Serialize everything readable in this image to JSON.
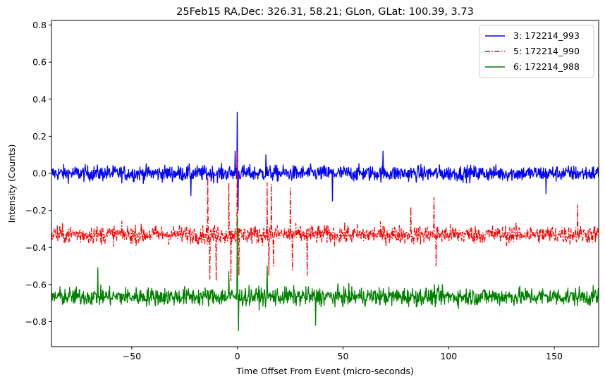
{
  "chart_data": {
    "type": "line",
    "title": "25Feb15 RA,Dec:  326.31,  58.21; GLon, GLat:  100.39,   3.73",
    "xlabel": "Time Offset From Event (micro-seconds)",
    "ylabel": "Intensity (Counts)",
    "xlim": [
      -88,
      171
    ],
    "ylim": [
      -0.935,
      0.825
    ],
    "xticks": [
      -50,
      0,
      50,
      100,
      150
    ],
    "xtick_labels": [
      "−50",
      "0",
      "50",
      "100",
      "150"
    ],
    "yticks": [
      -0.8,
      -0.6,
      -0.4,
      -0.2,
      0.0,
      0.2,
      0.4,
      0.6,
      0.8
    ],
    "ytick_labels": [
      "−0.8",
      "−0.6",
      "−0.4",
      "−0.2",
      "0.0",
      "0.2",
      "0.4",
      "0.6",
      "0.8"
    ],
    "grid": false,
    "legend_position": "top-right",
    "x_start": -88,
    "x_end": 171,
    "num_points": 1300,
    "series": [
      {
        "name": "3: 172214_993",
        "color": "#0000ff",
        "dash": "solid",
        "baseline": 0.0,
        "noise": 0.03,
        "spikes": [
          {
            "x": 0.0,
            "value": 0.33
          },
          {
            "x": 0.3,
            "value": -0.2
          },
          {
            "x": -1.0,
            "value": 0.12
          },
          {
            "x": 69.0,
            "value": 0.12
          },
          {
            "x": 13.5,
            "value": 0.1
          },
          {
            "x": 45.0,
            "value": -0.15
          },
          {
            "x": -22.0,
            "value": -0.12
          },
          {
            "x": 146.0,
            "value": -0.11
          }
        ]
      },
      {
        "name": "5: 172214_990",
        "color": "#ff0000",
        "dash": "dashdot",
        "baseline": -0.33,
        "noise": 0.035,
        "spikes": [
          {
            "x": -14.0,
            "value": -0.02
          },
          {
            "x": -13.0,
            "value": -0.57
          },
          {
            "x": -10.0,
            "value": -0.58
          },
          {
            "x": -4.0,
            "value": -0.05
          },
          {
            "x": -3.0,
            "value": -0.58
          },
          {
            "x": 0.0,
            "value": 0.12
          },
          {
            "x": 0.8,
            "value": -0.55
          },
          {
            "x": 14.0,
            "value": -0.05
          },
          {
            "x": 14.8,
            "value": -0.55
          },
          {
            "x": 16.0,
            "value": -0.06
          },
          {
            "x": 17.0,
            "value": -0.5
          },
          {
            "x": 25.0,
            "value": -0.08
          },
          {
            "x": 26.0,
            "value": -0.52
          },
          {
            "x": 33.0,
            "value": -0.55
          },
          {
            "x": 82.0,
            "value": -0.18
          },
          {
            "x": 93.0,
            "value": -0.13
          },
          {
            "x": 94.0,
            "value": -0.5
          },
          {
            "x": 161.0,
            "value": -0.17
          }
        ]
      },
      {
        "name": "6: 172214_988",
        "color": "#008000",
        "dash": "solid",
        "baseline": -0.665,
        "noise": 0.035,
        "spikes": [
          {
            "x": 0.0,
            "value": -0.23
          },
          {
            "x": 0.5,
            "value": -0.85
          },
          {
            "x": -66.0,
            "value": -0.51
          },
          {
            "x": 14.0,
            "value": -0.5
          },
          {
            "x": 37.0,
            "value": -0.82
          },
          {
            "x": -4.0,
            "value": -0.53
          }
        ]
      }
    ]
  }
}
